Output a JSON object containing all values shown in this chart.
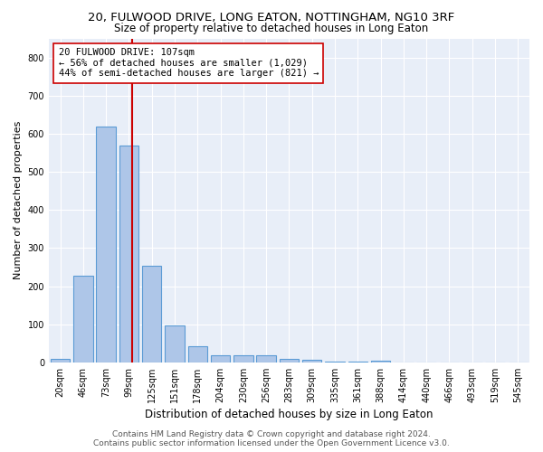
{
  "title": "20, FULWOOD DRIVE, LONG EATON, NOTTINGHAM, NG10 3RF",
  "subtitle": "Size of property relative to detached houses in Long Eaton",
  "xlabel": "Distribution of detached houses by size in Long Eaton",
  "ylabel": "Number of detached properties",
  "bar_labels": [
    "20sqm",
    "46sqm",
    "73sqm",
    "99sqm",
    "125sqm",
    "151sqm",
    "178sqm",
    "204sqm",
    "230sqm",
    "256sqm",
    "283sqm",
    "309sqm",
    "335sqm",
    "361sqm",
    "388sqm",
    "414sqm",
    "440sqm",
    "466sqm",
    "493sqm",
    "519sqm",
    "545sqm"
  ],
  "bar_values": [
    10,
    228,
    618,
    570,
    253,
    96,
    43,
    19,
    19,
    18,
    10,
    7,
    3,
    1,
    5,
    0,
    0,
    0,
    0,
    0,
    0
  ],
  "bar_color": "#aec6e8",
  "bar_edgecolor": "#5b9bd5",
  "vline_x": 3.15,
  "vline_color": "#cc0000",
  "annotation_text": "20 FULWOOD DRIVE: 107sqm\n← 56% of detached houses are smaller (1,029)\n44% of semi-detached houses are larger (821) →",
  "annotation_box_color": "#ffffff",
  "annotation_box_edgecolor": "#cc0000",
  "ylim": [
    0,
    850
  ],
  "yticks": [
    0,
    100,
    200,
    300,
    400,
    500,
    600,
    700,
    800
  ],
  "background_color": "#e8eef8",
  "footer_text": "Contains HM Land Registry data © Crown copyright and database right 2024.\nContains public sector information licensed under the Open Government Licence v3.0.",
  "title_fontsize": 9.5,
  "subtitle_fontsize": 8.5,
  "xlabel_fontsize": 8.5,
  "ylabel_fontsize": 8,
  "tick_fontsize": 7,
  "annotation_fontsize": 7.5,
  "footer_fontsize": 6.5
}
